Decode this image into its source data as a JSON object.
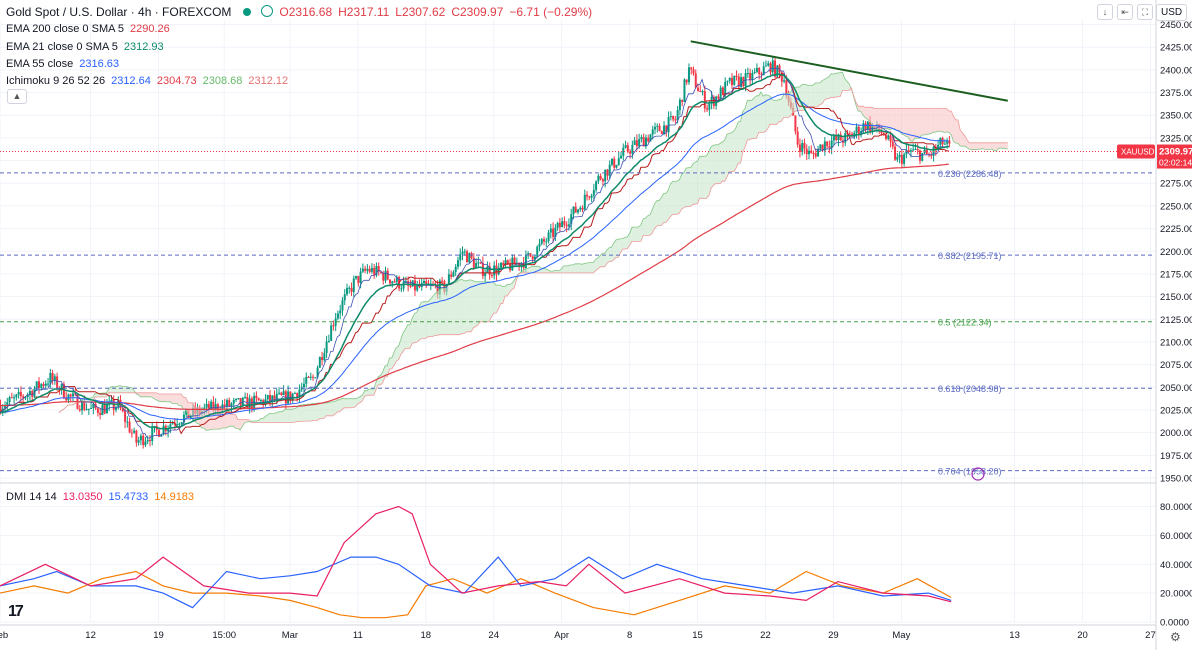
{
  "header": {
    "symbol": "Gold Spot / U.S. Dollar · 4h · FOREXCOM",
    "ohlc": {
      "o": "O2316.68",
      "h": "H2317.11",
      "l": "L2307.62",
      "c": "C2309.97",
      "chg": "−6.71 (−0.29%)"
    }
  },
  "legend": {
    "ema200_label": "EMA 200 close 0 SMA 5",
    "ema200_val": "2290.26",
    "ema21_label": "EMA 21 close 0 SMA 5",
    "ema21_val": "2312.93",
    "ema55_label": "EMA 55 close",
    "ema55_val": "2316.63",
    "ichimoku_label": "Ichimoku 9 26 52 26",
    "ichimoku_vals": [
      "2312.64",
      "2304.73",
      "2308.68",
      "2312.12"
    ],
    "dmi_label": "DMI 14 14",
    "dmi_vals": [
      "13.0350",
      "15.4733",
      "14.9183"
    ]
  },
  "currency": "USD",
  "collapse_icon": "▲",
  "toolbar": {
    "down": "↓",
    "left": "⇤",
    "full": "⛶"
  },
  "logo_text": "17",
  "gear_icon": "⚙",
  "colors": {
    "up": "#089981",
    "down": "#f23645",
    "ema200": "#e03c46",
    "ema21": "#0f8a6a",
    "ema55": "#2962ff",
    "trend": "#1b5e20",
    "fib": "#5c6bc0",
    "fib_mid": "#43a047",
    "cloud_up": "#c8e6c9",
    "cloud_down": "#f8c5c5",
    "dmi_plus": "#2962ff",
    "dmi_minus": "#f57c00",
    "adx": "#e91e63"
  },
  "chart_data": {
    "type": "candlestick",
    "instrument": "XAUUSD",
    "last_price": "2309.97",
    "countdown": "02:02:14",
    "y_ticks": [
      2450,
      2425,
      2400,
      2375,
      2350,
      2325,
      2300,
      2275,
      2250,
      2225,
      2200,
      2175,
      2150,
      2125,
      2100,
      2075,
      2050,
      2025,
      2000,
      1975,
      1950
    ],
    "y_tick_labels": [
      "2450.00",
      "2425.00",
      "2400.00",
      "2375.00",
      "2350.00",
      "2325.00",
      "2300.00",
      "2275.00",
      "2250.00",
      "2225.00",
      "2200.00",
      "2175.00",
      "2150.00",
      "2125.00",
      "2100.00",
      "2075.00",
      "2050.00",
      "2025.00",
      "2000.00",
      "1975.00",
      "1950.00"
    ],
    "ylim": [
      1950,
      2455
    ],
    "x_labels": [
      {
        "label": "Feb",
        "bar": 0
      },
      {
        "label": "12",
        "bar": 40
      },
      {
        "label": "19",
        "bar": 70
      },
      {
        "label": "15:00",
        "bar": 99
      },
      {
        "label": "Mar",
        "bar": 128
      },
      {
        "label": "11",
        "bar": 158
      },
      {
        "label": "18",
        "bar": 188
      },
      {
        "label": "24",
        "bar": 218
      },
      {
        "label": "Apr",
        "bar": 248
      },
      {
        "label": "8",
        "bar": 278
      },
      {
        "label": "15",
        "bar": 308
      },
      {
        "label": "22",
        "bar": 338
      },
      {
        "label": "29",
        "bar": 368
      },
      {
        "label": "May",
        "bar": 398
      },
      {
        "label": "13",
        "bar": 448
      },
      {
        "label": "20",
        "bar": 478
      },
      {
        "label": "27",
        "bar": 508
      }
    ],
    "bar_count": 420,
    "price_path": [
      [
        0,
        2030
      ],
      [
        10,
        2040
      ],
      [
        22,
        2060
      ],
      [
        30,
        2040
      ],
      [
        40,
        2025
      ],
      [
        52,
        2030
      ],
      [
        60,
        1990
      ],
      [
        68,
        2000
      ],
      [
        78,
        2015
      ],
      [
        90,
        2025
      ],
      [
        100,
        2030
      ],
      [
        118,
        2035
      ],
      [
        128,
        2040
      ],
      [
        138,
        2060
      ],
      [
        148,
        2130
      ],
      [
        156,
        2165
      ],
      [
        162,
        2180
      ],
      [
        168,
        2175
      ],
      [
        180,
        2160
      ],
      [
        196,
        2160
      ],
      [
        204,
        2200
      ],
      [
        212,
        2180
      ],
      [
        220,
        2180
      ],
      [
        232,
        2190
      ],
      [
        246,
        2225
      ],
      [
        256,
        2250
      ],
      [
        264,
        2280
      ],
      [
        276,
        2310
      ],
      [
        288,
        2330
      ],
      [
        298,
        2345
      ],
      [
        304,
        2400
      ],
      [
        312,
        2360
      ],
      [
        322,
        2385
      ],
      [
        330,
        2390
      ],
      [
        340,
        2405
      ],
      [
        346,
        2390
      ],
      [
        352,
        2320
      ],
      [
        358,
        2305
      ],
      [
        364,
        2320
      ],
      [
        374,
        2325
      ],
      [
        382,
        2340
      ],
      [
        390,
        2330
      ],
      [
        396,
        2300
      ],
      [
        402,
        2310
      ],
      [
        410,
        2305
      ],
      [
        416,
        2320
      ],
      [
        420,
        2312
      ]
    ],
    "fib_levels": [
      {
        "ratio": "0.236",
        "price": 2286.48,
        "label": "0.236 (2286.48)"
      },
      {
        "ratio": "0.382",
        "price": 2195.71,
        "label": "0.382 (2195.71)"
      },
      {
        "ratio": "0.5",
        "price": 2122.34,
        "label": "0.5 (2122.34)"
      },
      {
        "ratio": "0.618",
        "price": 2048.98,
        "label": "0.618 (2048.98)"
      },
      {
        "ratio": "0.764",
        "price": 1958.2,
        "label": "0.764 (1958.20)"
      }
    ],
    "trendline": [
      [
        305,
        2431.5
      ],
      [
        445,
        2366
      ]
    ],
    "dmi": {
      "y_ticks": [
        80,
        60,
        40,
        20,
        0
      ],
      "y_tick_labels": [
        "80.0000",
        "60.0000",
        "40.0000",
        "20.0000",
        "0.0000"
      ],
      "ylim": [
        0,
        88
      ],
      "adx": [
        [
          0,
          25
        ],
        [
          20,
          40
        ],
        [
          40,
          25
        ],
        [
          60,
          30
        ],
        [
          72,
          45
        ],
        [
          90,
          25
        ],
        [
          110,
          20
        ],
        [
          128,
          20
        ],
        [
          140,
          18
        ],
        [
          152,
          55
        ],
        [
          166,
          75
        ],
        [
          176,
          80
        ],
        [
          182,
          75
        ],
        [
          190,
          40
        ],
        [
          204,
          20
        ],
        [
          220,
          25
        ],
        [
          238,
          28
        ],
        [
          250,
          25
        ],
        [
          260,
          40
        ],
        [
          276,
          20
        ],
        [
          300,
          30
        ],
        [
          320,
          20
        ],
        [
          340,
          18
        ],
        [
          356,
          15
        ],
        [
          370,
          28
        ],
        [
          390,
          20
        ],
        [
          410,
          18
        ],
        [
          420,
          14
        ]
      ],
      "plus_di": [
        [
          0,
          25
        ],
        [
          15,
          30
        ],
        [
          25,
          35
        ],
        [
          40,
          25
        ],
        [
          60,
          25
        ],
        [
          72,
          20
        ],
        [
          85,
          10
        ],
        [
          100,
          35
        ],
        [
          115,
          30
        ],
        [
          128,
          32
        ],
        [
          140,
          35
        ],
        [
          155,
          45
        ],
        [
          166,
          45
        ],
        [
          176,
          40
        ],
        [
          190,
          25
        ],
        [
          205,
          20
        ],
        [
          220,
          45
        ],
        [
          230,
          25
        ],
        [
          245,
          30
        ],
        [
          260,
          45
        ],
        [
          275,
          30
        ],
        [
          290,
          40
        ],
        [
          310,
          30
        ],
        [
          330,
          25
        ],
        [
          350,
          20
        ],
        [
          370,
          25
        ],
        [
          390,
          18
        ],
        [
          410,
          20
        ],
        [
          420,
          15
        ]
      ],
      "minus_di": [
        [
          0,
          20
        ],
        [
          15,
          25
        ],
        [
          30,
          20
        ],
        [
          45,
          30
        ],
        [
          60,
          35
        ],
        [
          72,
          25
        ],
        [
          85,
          20
        ],
        [
          100,
          20
        ],
        [
          115,
          18
        ],
        [
          128,
          15
        ],
        [
          140,
          10
        ],
        [
          150,
          5
        ],
        [
          160,
          3
        ],
        [
          170,
          3
        ],
        [
          180,
          5
        ],
        [
          188,
          25
        ],
        [
          200,
          30
        ],
        [
          215,
          20
        ],
        [
          230,
          30
        ],
        [
          245,
          20
        ],
        [
          262,
          10
        ],
        [
          280,
          5
        ],
        [
          300,
          15
        ],
        [
          320,
          25
        ],
        [
          340,
          20
        ],
        [
          356,
          35
        ],
        [
          372,
          25
        ],
        [
          390,
          20
        ],
        [
          405,
          30
        ],
        [
          420,
          17
        ]
      ]
    }
  }
}
